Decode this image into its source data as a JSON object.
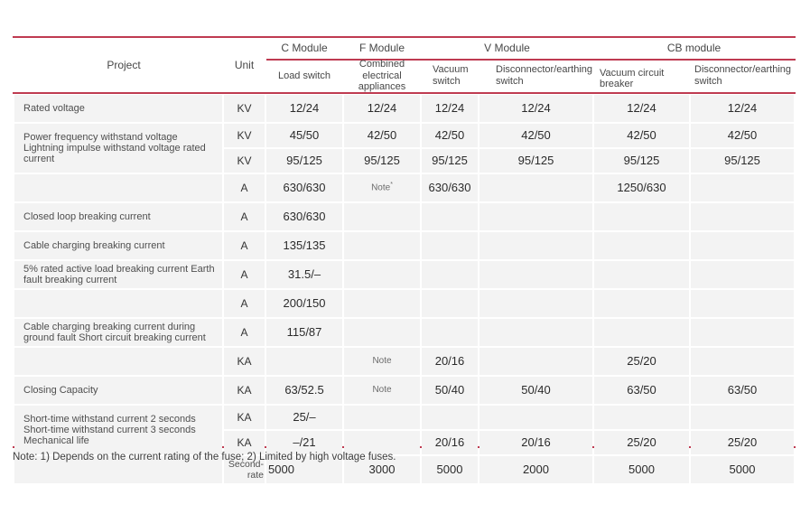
{
  "colors": {
    "accent_red": "#bf3b51",
    "row_band": "#f3f3f3",
    "text": "#3b3b3b"
  },
  "header": {
    "project": "Project",
    "unit": "Unit",
    "groups": [
      {
        "label": "C Module"
      },
      {
        "label": "F Module"
      },
      {
        "label": "V Module"
      },
      {
        "label": "CB module"
      }
    ],
    "columns": [
      {
        "label": "Load switch"
      },
      {
        "label": "Combined electrical appliances"
      },
      {
        "label": "Vacuum switch"
      },
      {
        "label": "Disconnector/earthing switch"
      },
      {
        "label": "Vacuum circuit breaker"
      },
      {
        "label": "Disconnector/earthing switch"
      }
    ]
  },
  "table": {
    "rows": [
      {
        "project": "Rated voltage",
        "rs": 1,
        "unit": "KV",
        "values": [
          "12/24",
          "12/24",
          "12/24",
          "12/24",
          "12/24",
          "12/24"
        ]
      },
      {
        "project": "Power frequency withstand voltage\nLightning impulse withstand voltage rated current",
        "rs": 2,
        "unit": "KV",
        "values": [
          "45/50",
          "42/50",
          "42/50",
          "42/50",
          "42/50",
          "42/50"
        ]
      },
      {
        "project": null,
        "unit": "KV",
        "values": [
          "95/125",
          "95/125",
          "95/125",
          "95/125",
          "95/125",
          "95/125"
        ]
      },
      {
        "project": "",
        "rs": 1,
        "unit": "A",
        "values": [
          "630/630",
          "Note*",
          "630/630",
          "",
          "1250/630",
          ""
        ]
      },
      {
        "project": "Closed loop breaking current",
        "rs": 1,
        "unit": "A",
        "values": [
          "630/630",
          "",
          "",
          "",
          "",
          ""
        ]
      },
      {
        "project": "Cable charging breaking current",
        "rs": 1,
        "unit": "A",
        "values": [
          "135/135",
          "",
          "",
          "",
          "",
          ""
        ]
      },
      {
        "project": "5% rated active load breaking current Earth fault breaking current",
        "rs": 1,
        "unit": "A",
        "values": [
          "31.5/–",
          "",
          "",
          "",
          "",
          ""
        ]
      },
      {
        "project": "",
        "rs": 1,
        "unit": "A",
        "values": [
          "200/150",
          "",
          "",
          "",
          "",
          ""
        ]
      },
      {
        "project": "Cable charging breaking current during ground fault Short circuit breaking current",
        "rs": 1,
        "unit": "A",
        "values": [
          "115/87",
          "",
          "",
          "",
          "",
          ""
        ]
      },
      {
        "project": "",
        "rs": 1,
        "unit": "KA",
        "values": [
          "",
          "Note",
          "20/16",
          "",
          "25/20",
          ""
        ]
      },
      {
        "project": "Closing Capacity",
        "rs": 1,
        "unit": "KA",
        "values": [
          "63/52.5",
          "Note",
          "50/40",
          "50/40",
          "63/50",
          "63/50"
        ]
      },
      {
        "project": "Short-time withstand current 2 seconds Short-time withstand current 3 seconds Mechanical life",
        "rs": 2,
        "unit": "KA",
        "values": [
          "25/–",
          "",
          "",
          "",
          "",
          ""
        ]
      },
      {
        "project": null,
        "unit": "KA",
        "values": [
          "–/21",
          "",
          "20/16",
          "20/16",
          "25/20",
          "25/20"
        ]
      },
      {
        "project": "",
        "rs": 1,
        "unit": "Second-rate",
        "flush_first": true,
        "values": [
          "5000",
          "3000",
          "5000",
          "2000",
          "5000",
          "5000"
        ]
      }
    ]
  },
  "footnote": "Note: 1) Depends on the current rating of the fuse; 2) Limited by high voltage fuses."
}
